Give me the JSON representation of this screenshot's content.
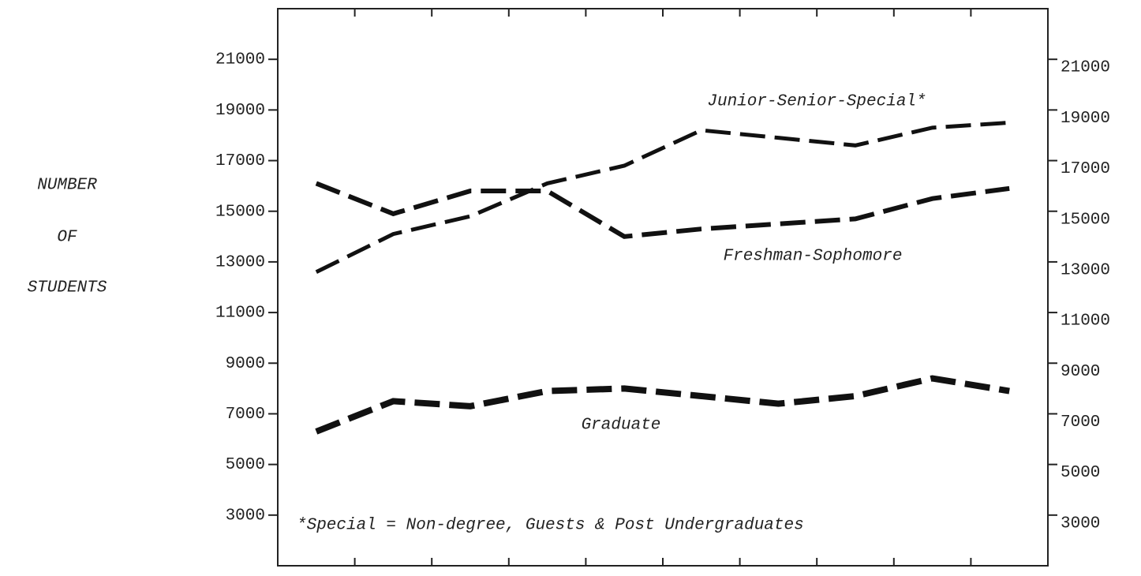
{
  "chart_data": {
    "type": "line",
    "ylabel": [
      "NUMBER",
      "OF",
      "STUDENTS"
    ],
    "categories": [
      null,
      null,
      null,
      null,
      null,
      null,
      null,
      null,
      null,
      null
    ],
    "series": [
      {
        "name": "Junior-Senior-Special*",
        "color": "#111111",
        "values": [
          12600,
          14100,
          14800,
          16100,
          16800,
          18200,
          17900,
          17600,
          18300,
          18500
        ]
      },
      {
        "name": "Freshman-Sophomore",
        "color": "#111111",
        "values": [
          16100,
          14900,
          15800,
          15800,
          14000,
          14300,
          14500,
          14700,
          15500,
          15900
        ]
      },
      {
        "name": "Graduate",
        "color": "#111111",
        "values": [
          6300,
          7500,
          7300,
          7900,
          8000,
          7700,
          7400,
          7700,
          8400,
          7900
        ]
      }
    ],
    "annotations": [
      "*Special = Non-degree, Guests & Post Undergraduates"
    ],
    "ylim": [
      1000,
      23000
    ],
    "yticks": [
      3000,
      5000,
      7000,
      9000,
      11000,
      13000,
      15000,
      17000,
      19000,
      21000
    ],
    "y2lim": [
      1000,
      23000
    ],
    "y2ticks": [
      3000,
      5000,
      7000,
      9000,
      11000,
      13000,
      15000,
      17000,
      19000,
      21000
    ],
    "grid": false,
    "line_style": "dashed"
  }
}
